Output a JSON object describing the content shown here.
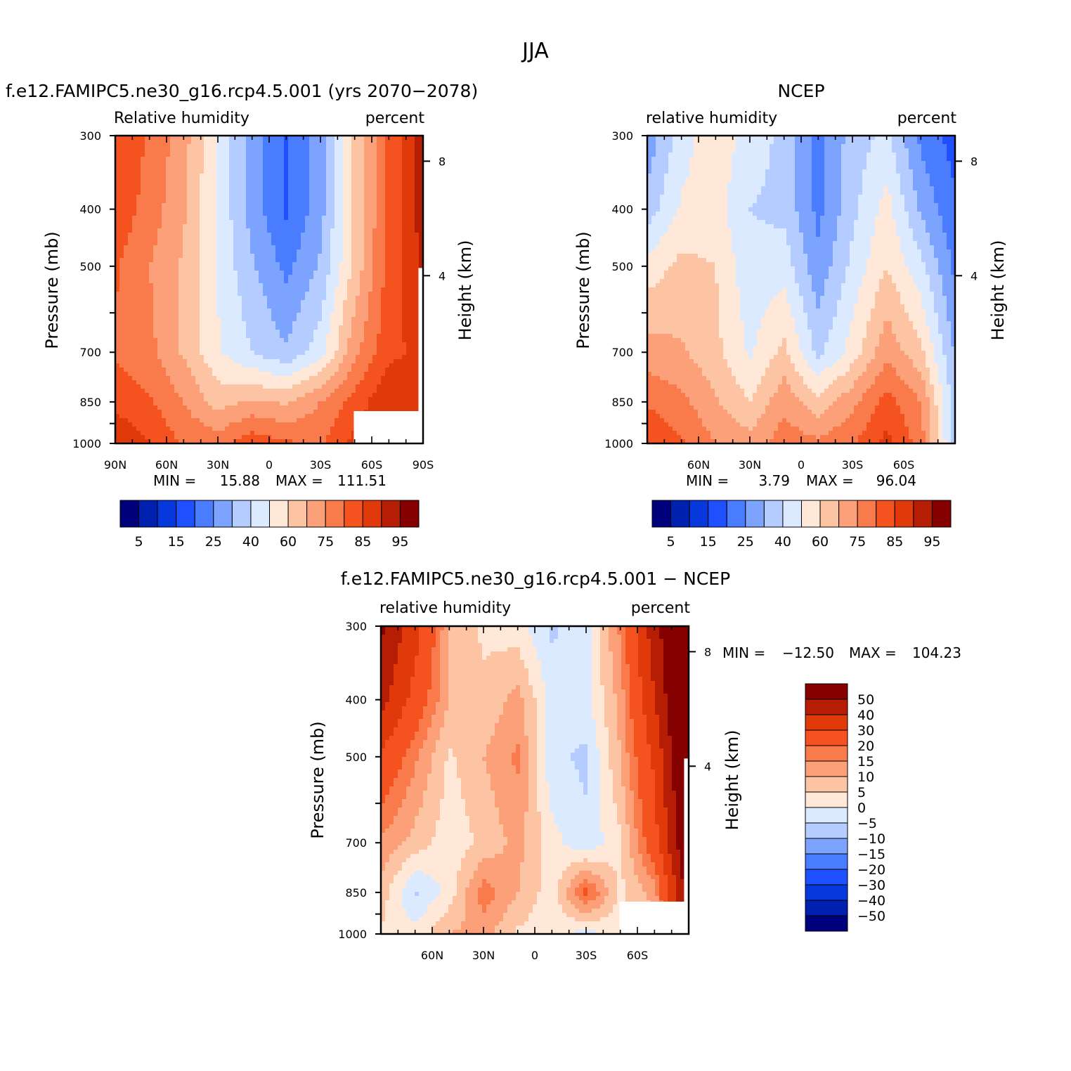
{
  "figure": {
    "title": "JJA"
  },
  "chart_data": [
    {
      "type": "heatmap",
      "title": "f.e12.FAMIPC5.ne30_g16.rcp4.5.001 (yrs 2070−2078)",
      "left_label": "Relative humidity",
      "right_label": "percent",
      "ylabel": "Pressure (mb)",
      "ylabel_right": "Height (km)",
      "x_ticks": [
        "90N",
        "60N",
        "30N",
        "0",
        "30S",
        "60S",
        "90S"
      ],
      "y_ticks": [
        "300",
        "400",
        "500",
        "700",
        "850",
        "1000"
      ],
      "height_ticks": [
        "8",
        "4"
      ],
      "min_max": {
        "min_label": "MIN =",
        "min": "15.88",
        "max_label": "MAX =",
        "max": "111.51"
      },
      "colorbar_orientation": "horizontal",
      "colorbar_labels": [
        "5",
        "15",
        "25",
        "40",
        "60",
        "75",
        "85",
        "95"
      ],
      "palette": [
        "#00007c",
        "#0020b0",
        "#0638dc",
        "#1e50ff",
        "#4a7cff",
        "#7ca4ff",
        "#b4ccff",
        "#dbeaff",
        "#ffe8d8",
        "#fdc4a4",
        "#fca07a",
        "#f97a4a",
        "#f4521e",
        "#e03a0a",
        "#b51e04",
        "#850000"
      ],
      "field": {
        "lat_min": -90,
        "lat_max": 90,
        "rows": [
          [
            84,
            76,
            66,
            48,
            32,
            20,
            32,
            58,
            78,
            96
          ],
          [
            82,
            74,
            64,
            48,
            32,
            20,
            32,
            58,
            78,
            95
          ],
          [
            78,
            70,
            62,
            48,
            36,
            26,
            36,
            58,
            80,
            92
          ],
          [
            76,
            72,
            62,
            50,
            42,
            36,
            46,
            68,
            82,
            86
          ],
          [
            82,
            78,
            70,
            60,
            64,
            62,
            70,
            80,
            90,
            90
          ],
          [
            90,
            84,
            76,
            74,
            82,
            78,
            76,
            86,
            92,
            92
          ]
        ],
        "missing_lower_right": true
      }
    },
    {
      "type": "heatmap",
      "title": "NCEP",
      "left_label": "relative humidity",
      "right_label": "percent",
      "ylabel": "Pressure (mb)",
      "ylabel_right": "Height (km)",
      "x_ticks": [
        "60N",
        "30N",
        "0",
        "30S",
        "60S"
      ],
      "y_ticks": [
        "300",
        "400",
        "500",
        "700",
        "850",
        "1000"
      ],
      "height_ticks": [
        "8",
        "4"
      ],
      "min_max": {
        "min_label": "MIN =",
        "min": "3.79",
        "max_label": "MAX =",
        "max": "96.04"
      },
      "colorbar_orientation": "horizontal",
      "colorbar_labels": [
        "5",
        "15",
        "25",
        "40",
        "60",
        "75",
        "85",
        "95"
      ],
      "palette": [
        "#00007c",
        "#0020b0",
        "#0638dc",
        "#1e50ff",
        "#4a7cff",
        "#7ca4ff",
        "#b4ccff",
        "#dbeaff",
        "#ffe8d8",
        "#fdc4a4",
        "#fca07a",
        "#f97a4a",
        "#f4521e",
        "#e03a0a",
        "#b51e04",
        "#850000"
      ],
      "field": {
        "lat_min": -90,
        "lat_max": 90,
        "rows": [
          [
            30,
            46,
            54,
            46,
            40,
            26,
            38,
            44,
            26,
            18
          ],
          [
            38,
            50,
            52,
            42,
            40,
            26,
            40,
            52,
            34,
            22
          ],
          [
            52,
            58,
            56,
            44,
            46,
            30,
            44,
            56,
            44,
            26
          ],
          [
            66,
            64,
            58,
            48,
            58,
            40,
            52,
            68,
            58,
            34
          ],
          [
            76,
            72,
            64,
            56,
            68,
            58,
            68,
            80,
            70,
            38
          ],
          [
            84,
            78,
            70,
            66,
            74,
            72,
            76,
            86,
            74,
            38
          ]
        ],
        "missing_lower_right": false
      }
    },
    {
      "type": "heatmap",
      "title": "f.e12.FAMIPC5.ne30_g16.rcp4.5.001 − NCEP",
      "left_label": "relative humidity",
      "right_label": "percent",
      "ylabel": "Pressure (mb)",
      "ylabel_right": "Height (km)",
      "x_ticks": [
        "60N",
        "30N",
        "0",
        "30S",
        "60S"
      ],
      "y_ticks": [
        "300",
        "400",
        "500",
        "700",
        "850",
        "1000"
      ],
      "height_ticks": [
        "8",
        "4"
      ],
      "min_max": {
        "min_label": "MIN =",
        "min": "−12.50",
        "max_label": "MAX =",
        "max": "104.23"
      },
      "colorbar_orientation": "vertical",
      "colorbar_labels": [
        "50",
        "40",
        "30",
        "20",
        "15",
        "10",
        "5",
        "0",
        "−5",
        "−10",
        "−15",
        "−20",
        "−30",
        "−40",
        "−50"
      ],
      "palette": [
        "#850000",
        "#b51e04",
        "#e03a0a",
        "#f4521e",
        "#f97a4a",
        "#fca07a",
        "#fdc4a4",
        "#ffe8d8",
        "#dbeaff",
        "#b4ccff",
        "#7ca4ff",
        "#4a7cff",
        "#1e50ff",
        "#0638dc",
        "#0020b0",
        "#00007c"
      ],
      "field": {
        "lat_min": -90,
        "lat_max": 90,
        "rows": [
          [
            52,
            34,
            10,
            4,
            2,
            -6,
            -2,
            16,
            46,
            70
          ],
          [
            44,
            26,
            10,
            6,
            12,
            -2,
            -2,
            12,
            40,
            70
          ],
          [
            28,
            16,
            4,
            10,
            16,
            -4,
            -6,
            10,
            32,
            68
          ],
          [
            14,
            8,
            2,
            6,
            12,
            2,
            -4,
            4,
            26,
            62
          ],
          [
            8,
            -6,
            2,
            18,
            10,
            2,
            22,
            4,
            12,
            56
          ],
          [
            4,
            2,
            10,
            12,
            4,
            2,
            -2,
            2,
            8,
            50
          ]
        ],
        "missing_lower_right": true
      }
    }
  ]
}
